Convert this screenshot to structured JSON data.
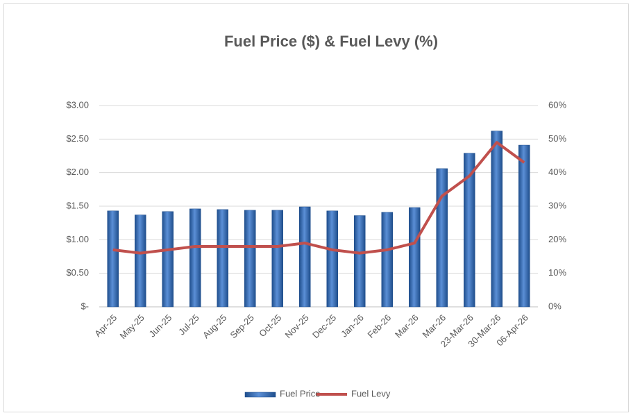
{
  "chart_data": {
    "type": "bar",
    "title": "Fuel Price ($) & Fuel Levy (%)",
    "categories": [
      "Apr-25",
      "May-25",
      "Jun-25",
      "Jul-25",
      "Aug-25",
      "Sep-25",
      "Oct-25",
      "Nov-25",
      "Dec-25",
      "Jan-26",
      "Feb-26",
      "Mar-26",
      "Mar-26",
      "23-Mar-26",
      "30-Mar-26",
      "06-Apr-26"
    ],
    "series": [
      {
        "name": "Fuel Price",
        "type": "bar",
        "color": "#2e64b0",
        "values": [
          1.43,
          1.37,
          1.42,
          1.46,
          1.45,
          1.44,
          1.44,
          1.49,
          1.43,
          1.36,
          1.41,
          1.48,
          2.06,
          2.29,
          2.62,
          2.41
        ]
      },
      {
        "name": "Fuel Levy",
        "type": "line",
        "axis": "y2",
        "color": "#c0504d",
        "values": [
          17,
          16,
          17,
          18,
          18,
          18,
          18,
          19,
          17,
          16,
          17,
          19,
          33,
          39,
          49,
          43
        ]
      }
    ],
    "ylim": [
      0,
      3
    ],
    "yticks": [
      {
        "value": 0,
        "label": "$-"
      },
      {
        "value": 0.5,
        "label": "$0.50"
      },
      {
        "value": 1,
        "label": "$1.00"
      },
      {
        "value": 1.5,
        "label": "$1.50"
      },
      {
        "value": 2,
        "label": "$2.00"
      },
      {
        "value": 2.5,
        "label": "$2.50"
      },
      {
        "value": 3,
        "label": "$3.00"
      }
    ],
    "y2lim": [
      0,
      60
    ],
    "y2ticks": [
      {
        "value": 0,
        "label": "0%"
      },
      {
        "value": 10,
        "label": "10%"
      },
      {
        "value": 20,
        "label": "20%"
      },
      {
        "value": 30,
        "label": "30%"
      },
      {
        "value": 40,
        "label": "40%"
      },
      {
        "value": 50,
        "label": "50%"
      },
      {
        "value": 60,
        "label": "60%"
      }
    ],
    "grid": true,
    "legend": "bottom"
  }
}
